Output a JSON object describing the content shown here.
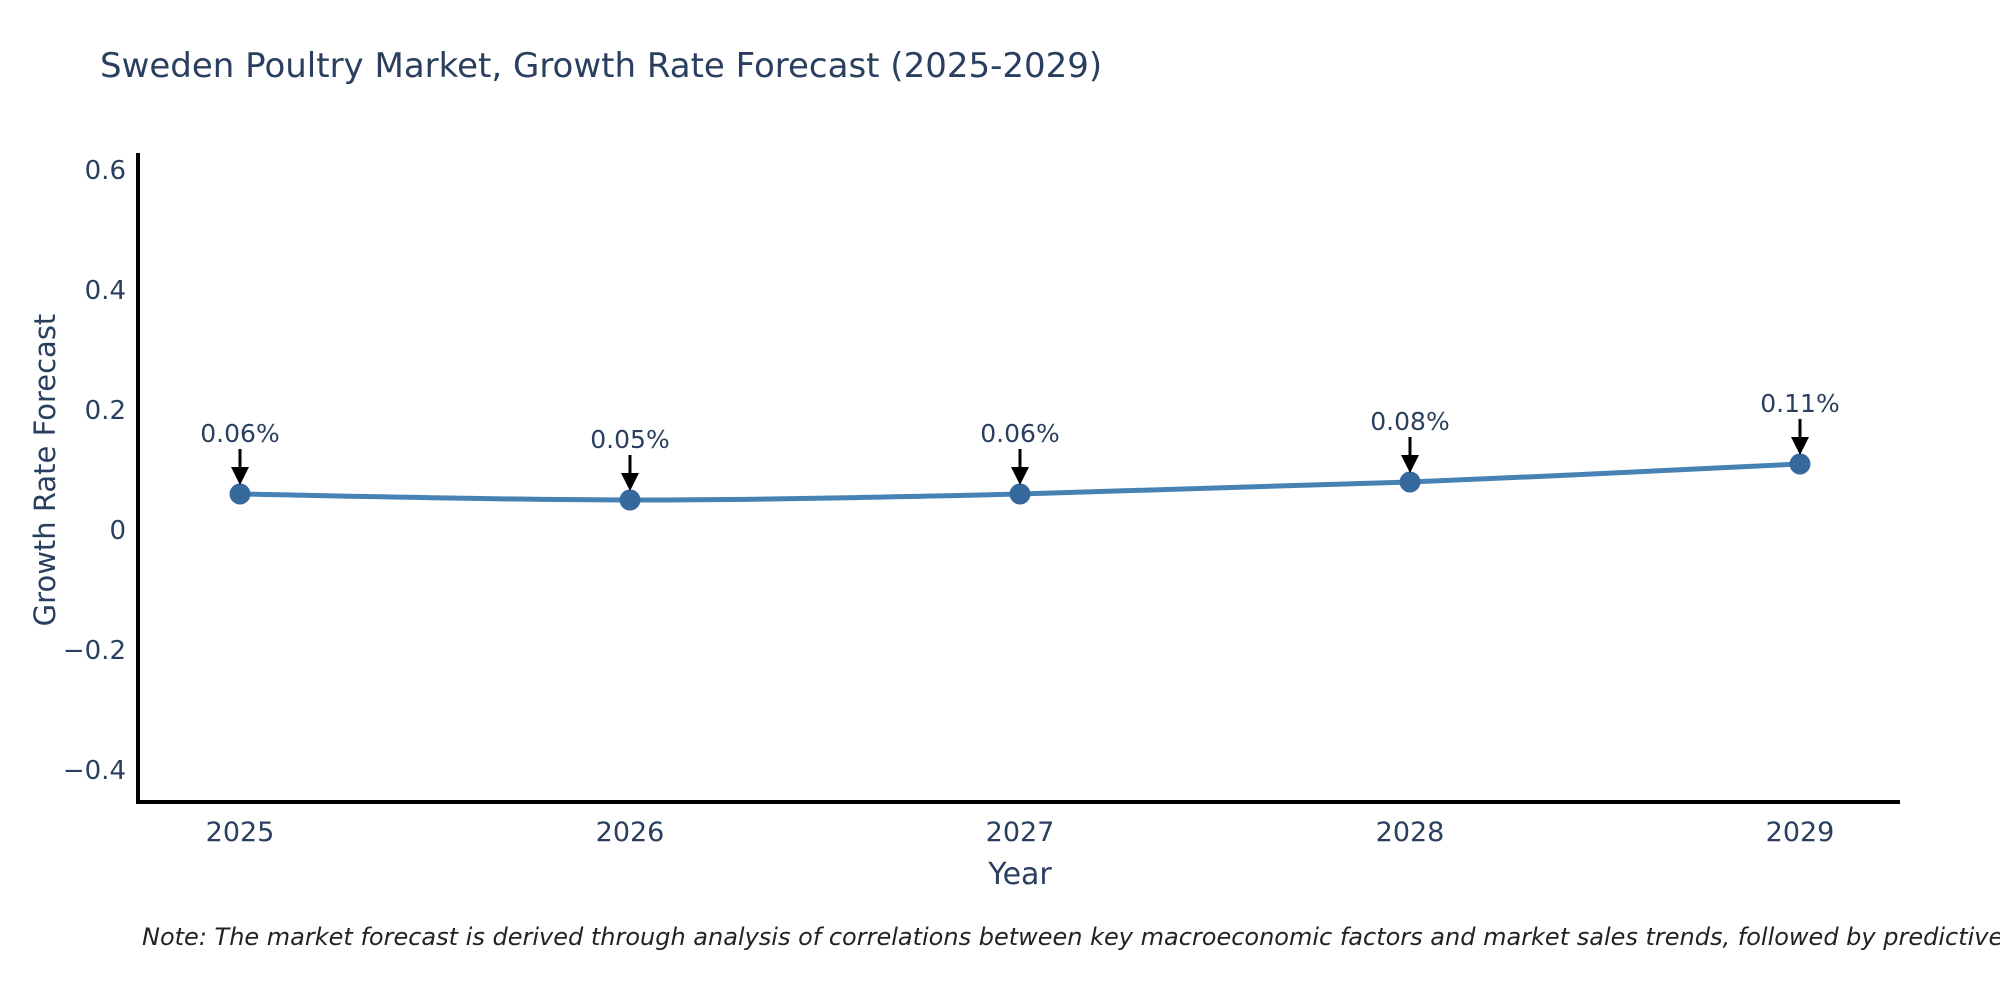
{
  "page": {
    "background": "#ffffff"
  },
  "chart_data": {
    "type": "line",
    "title": "Sweden Poultry Market, Growth Rate Forecast (2025-2029)",
    "xlabel": "Year",
    "ylabel": "Growth Rate Forecast",
    "categories": [
      "2025",
      "2026",
      "2027",
      "2028",
      "2029"
    ],
    "series": [
      {
        "name": "Growth Rate Forecast",
        "values": [
          0.06,
          0.05,
          0.06,
          0.08,
          0.11
        ],
        "point_labels": [
          "0.06%",
          "0.05%",
          "0.06%",
          "0.08%",
          "0.11%"
        ]
      }
    ],
    "yticks": [
      0.6,
      0.4,
      0.2,
      0,
      -0.2,
      -0.4
    ],
    "ylim": [
      -0.45,
      0.62
    ],
    "grid": false,
    "legend_position": "none",
    "annotation_style": "black arrow pointing down to each data point, label above",
    "colors": {
      "line": "#4682b4",
      "marker": "#35699e",
      "axis": "#000000",
      "text": "#2a3f5f",
      "arrow": "#000000",
      "note_text": "#222222"
    }
  },
  "footnote": "Note: The market forecast is derived through analysis of correlations between key macroeconomic factors and market sales trends, followed by predictive modeling to project future sales"
}
